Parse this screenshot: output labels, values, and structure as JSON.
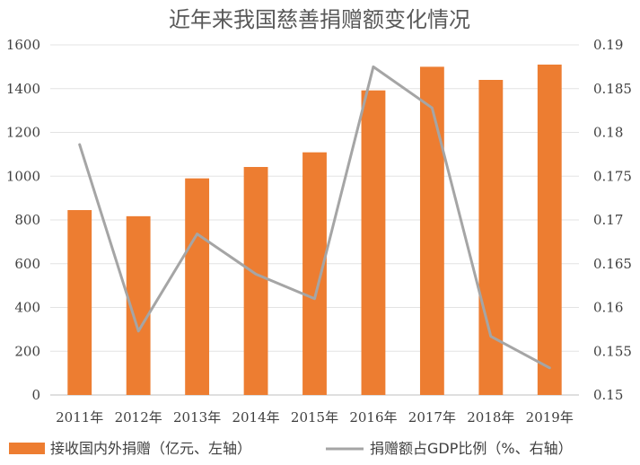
{
  "chart_data": {
    "type": "bar",
    "title": "近年来我国慈善捐赠额变化情况",
    "categories": [
      "2011年",
      "2012年",
      "2013年",
      "2014年",
      "2015年",
      "2016年",
      "2017年",
      "2018年",
      "2019年"
    ],
    "series": [
      {
        "name": "接收国内外捐赠（亿元、左轴）",
        "type": "bar",
        "axis": "left",
        "color": "#ED7D31",
        "values": [
          845,
          817,
          990,
          1042,
          1109,
          1392,
          1500,
          1440,
          1510
        ]
      },
      {
        "name": "捐赠额占GDP比例（%、右轴）",
        "type": "line",
        "axis": "right",
        "color": "#A5A5A5",
        "values": [
          0.1786,
          0.1573,
          0.1684,
          0.1638,
          0.161,
          0.1875,
          0.1828,
          0.1567,
          0.1531
        ]
      }
    ],
    "y_left": {
      "range": [
        0,
        1600
      ],
      "ticks": [
        "0",
        "200",
        "400",
        "600",
        "800",
        "1000",
        "1200",
        "1400",
        "1600"
      ]
    },
    "y_right": {
      "range": [
        0.15,
        0.19
      ],
      "ticks": [
        "0.15",
        "0.155",
        "0.16",
        "0.165",
        "0.17",
        "0.175",
        "0.18",
        "0.185",
        "0.19"
      ]
    },
    "grid": true,
    "legend_position": "bottom"
  }
}
